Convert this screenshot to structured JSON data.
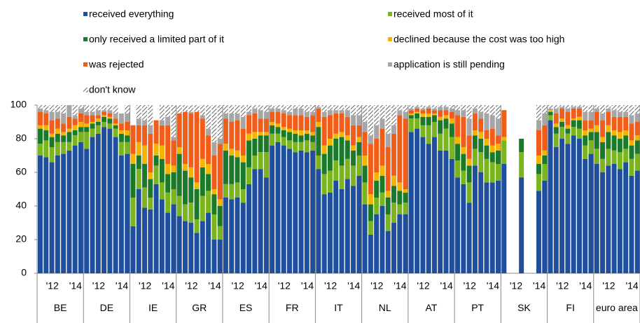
{
  "chart_data": {
    "type": "stacked_bar",
    "groups": [
      "BE",
      "DE",
      "IE",
      "GR",
      "ES",
      "FR",
      "IT",
      "NL",
      "AT",
      "PT",
      "SK",
      "FI",
      "euro area"
    ],
    "categories": [
      null,
      null,
      "'12",
      null,
      null,
      null,
      "'14",
      null,
      null,
      null,
      "'12",
      null,
      null,
      null,
      "'14",
      null,
      null,
      null,
      "'12",
      null,
      null,
      null,
      "'14",
      null,
      null,
      null,
      "'12",
      null,
      null,
      null,
      "'14",
      null,
      null,
      null,
      "'12",
      null,
      null,
      null,
      "'14",
      null,
      null,
      null,
      "'12",
      null,
      null,
      null,
      "'14",
      null,
      null,
      null,
      "'12",
      null,
      null,
      null,
      "'14",
      null,
      null,
      null,
      "'12",
      null,
      null,
      null,
      "'14",
      null,
      null,
      null,
      "'12",
      null,
      null,
      null,
      "'14",
      null,
      null,
      null,
      "'12",
      null,
      null,
      null,
      "'14",
      null,
      null,
      null,
      "'12",
      null,
      null,
      null,
      "'14",
      null,
      null,
      null,
      "'12",
      null,
      null,
      null,
      "'14",
      null,
      null,
      null,
      "'12",
      null,
      null,
      null,
      "'14",
      null
    ],
    "series": [
      {
        "name": "received everything",
        "color": "#1f4e9c",
        "values": [
          70,
          69,
          66,
          70,
          71,
          73,
          76,
          78,
          74,
          81,
          83,
          87,
          86,
          81,
          70,
          71,
          28,
          50,
          39,
          38,
          53,
          44,
          36,
          41,
          34,
          31,
          30,
          24,
          31,
          36,
          20,
          20,
          45,
          44,
          45,
          42,
          53,
          62,
          62,
          57,
          76,
          78,
          76,
          74,
          72,
          73,
          72,
          73,
          62,
          47,
          48,
          55,
          50,
          56,
          52,
          58,
          41,
          23,
          35,
          40,
          25,
          30,
          35,
          35,
          84,
          86,
          81,
          77,
          81,
          73,
          73,
          68,
          57,
          53,
          42,
          64,
          60,
          54,
          54,
          55,
          65,
          null,
          null,
          57,
          null,
          null,
          49,
          55,
          91,
          75,
          80,
          77,
          82,
          80,
          68,
          71,
          65,
          60,
          64,
          65,
          62,
          66,
          58,
          61
        ]
      },
      {
        "name": "received most of it",
        "color": "#7ab51d",
        "values": [
          7,
          10,
          9,
          8,
          7,
          5,
          6,
          6,
          10,
          5,
          5,
          3,
          3,
          5,
          8,
          7,
          17,
          12,
          12,
          7,
          11,
          10,
          12,
          9,
          12,
          10,
          12,
          8,
          15,
          13,
          15,
          8,
          8,
          9,
          9,
          8,
          10,
          8,
          10,
          15,
          7,
          5,
          5,
          5,
          6,
          5,
          7,
          5,
          8,
          12,
          13,
          12,
          14,
          12,
          12,
          12,
          13,
          8,
          10,
          8,
          10,
          12,
          6,
          7,
          8,
          6,
          7,
          11,
          9,
          10,
          13,
          13,
          10,
          8,
          12,
          10,
          12,
          14,
          12,
          10,
          14,
          null,
          null,
          15,
          null,
          null,
          10,
          10,
          3,
          8,
          7,
          6,
          5,
          6,
          8,
          8,
          9,
          8,
          10,
          8,
          10,
          8,
          10,
          10
        ]
      },
      {
        "name": "only received a limited part of it",
        "color": "#1a7a2a",
        "values": [
          9,
          6,
          6,
          5,
          4,
          6,
          3,
          3,
          3,
          3,
          2,
          3,
          3,
          2,
          5,
          4,
          20,
          8,
          14,
          11,
          6,
          14,
          11,
          10,
          25,
          20,
          15,
          18,
          17,
          10,
          12,
          12,
          20,
          17,
          15,
          16,
          16,
          10,
          10,
          10,
          5,
          4,
          4,
          5,
          5,
          4,
          4,
          4,
          17,
          12,
          15,
          13,
          17,
          11,
          9,
          8,
          10,
          10,
          10,
          10,
          10,
          10,
          8,
          6,
          2,
          3,
          5,
          5,
          4,
          8,
          6,
          8,
          10,
          10,
          10,
          8,
          8,
          8,
          6,
          8,
          0,
          null,
          null,
          8,
          null,
          null,
          6,
          5,
          2,
          4,
          3,
          3,
          4,
          5,
          6,
          5,
          10,
          10,
          10,
          9,
          8,
          8,
          8,
          8
        ]
      },
      {
        "name": "declined because the cost was too high",
        "color": "#f5b400",
        "values": [
          2,
          3,
          2,
          3,
          2,
          2,
          3,
          3,
          2,
          1,
          2,
          1,
          1,
          1,
          2,
          3,
          6,
          8,
          11,
          4,
          7,
          8,
          6,
          4,
          4,
          4,
          6,
          4,
          5,
          6,
          3,
          4,
          4,
          4,
          4,
          4,
          4,
          4,
          2,
          2,
          2,
          2,
          2,
          2,
          2,
          3,
          2,
          2,
          3,
          5,
          4,
          3,
          3,
          3,
          3,
          3,
          6,
          6,
          5,
          6,
          4,
          6,
          5,
          2,
          1,
          1,
          2,
          2,
          1,
          2,
          2,
          3,
          4,
          4,
          4,
          3,
          4,
          4,
          4,
          4,
          2,
          null,
          null,
          0,
          null,
          null,
          5,
          3,
          1,
          2,
          2,
          2,
          1,
          2,
          3,
          2,
          4,
          3,
          4,
          3,
          4,
          3,
          3,
          3
        ]
      },
      {
        "name": "was rejected",
        "color": "#f25c19",
        "values": [
          8,
          7,
          8,
          6,
          5,
          7,
          4,
          5,
          5,
          4,
          2,
          2,
          2,
          3,
          4,
          5,
          17,
          10,
          12,
          23,
          14,
          12,
          23,
          15,
          20,
          31,
          32,
          42,
          24,
          17,
          20,
          33,
          15,
          16,
          18,
          16,
          11,
          11,
          8,
          8,
          6,
          7,
          8,
          8,
          9,
          9,
          8,
          10,
          8,
          17,
          14,
          12,
          11,
          11,
          12,
          7,
          14,
          30,
          20,
          22,
          26,
          25,
          40,
          42,
          2,
          2,
          2,
          3,
          2,
          4,
          3,
          4,
          13,
          18,
          14,
          10,
          8,
          5,
          10,
          5,
          16,
          null,
          null,
          0,
          null,
          null,
          15,
          15,
          0,
          6,
          6,
          8,
          6,
          5,
          6,
          5,
          8,
          10,
          8,
          8,
          9,
          8,
          10,
          8
        ]
      },
      {
        "name": "application is still pending",
        "color": "#a6a6a6",
        "values": [
          2,
          2,
          5,
          4,
          6,
          7,
          2,
          3,
          2,
          2,
          3,
          1,
          2,
          3,
          6,
          5,
          0,
          4,
          3,
          5,
          0,
          3,
          5,
          2,
          0,
          0,
          1,
          0,
          2,
          4,
          8,
          3,
          3,
          5,
          4,
          7,
          2,
          3,
          5,
          4,
          2,
          2,
          2,
          2,
          4,
          4,
          3,
          2,
          1,
          3,
          3,
          2,
          2,
          4,
          6,
          6,
          6,
          5,
          8,
          6,
          8,
          5,
          3,
          4,
          1,
          1,
          1,
          1,
          1,
          2,
          2,
          2,
          3,
          4,
          10,
          3,
          4,
          10,
          8,
          10,
          0,
          null,
          null,
          0,
          null,
          null,
          6,
          7,
          1,
          3,
          1,
          2,
          1,
          1,
          5,
          5,
          2,
          4,
          2,
          4,
          3,
          3,
          5,
          5
        ]
      },
      {
        "name": "don't know",
        "color": "#404040",
        "hatch": true,
        "values": [
          2,
          3,
          4,
          4,
          5,
          0,
          6,
          2,
          4,
          4,
          3,
          3,
          3,
          5,
          0,
          5,
          0,
          8,
          9,
          12,
          0,
          9,
          7,
          19,
          5,
          4,
          4,
          4,
          6,
          14,
          22,
          20,
          5,
          5,
          5,
          7,
          4,
          2,
          3,
          4,
          2,
          2,
          3,
          4,
          2,
          2,
          4,
          4,
          1,
          4,
          3,
          3,
          3,
          3,
          6,
          6,
          10,
          18,
          12,
          8,
          17,
          12,
          3,
          4,
          2,
          1,
          2,
          1,
          2,
          1,
          1,
          2,
          3,
          3,
          8,
          2,
          4,
          5,
          6,
          8,
          0,
          null,
          null,
          0,
          null,
          null,
          9,
          5,
          2,
          2,
          1,
          2,
          1,
          1,
          4,
          4,
          2,
          5,
          2,
          3,
          4,
          4,
          6,
          5
        ]
      }
    ],
    "ylim": [
      0,
      100
    ],
    "yticks": [
      0,
      20,
      40,
      60,
      80,
      100
    ]
  }
}
